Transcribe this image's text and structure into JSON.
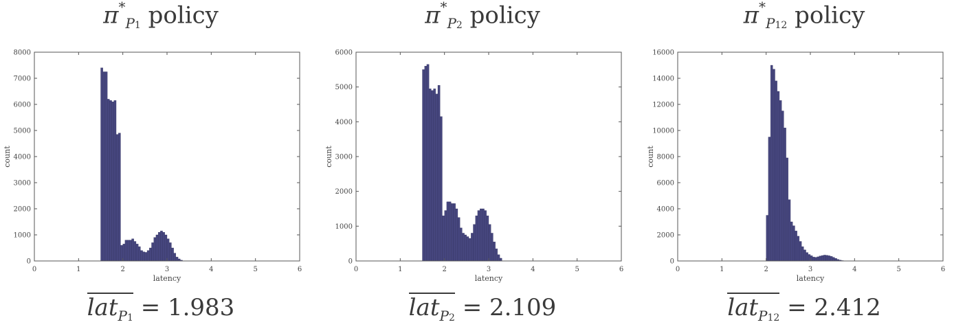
{
  "bar_color": "#46467e",
  "chart_data": [
    {
      "type": "bar",
      "title_prefix": "π",
      "title_star": "*",
      "title_sub": "P",
      "title_sub_num": "1",
      "title_suffix": "policy",
      "formula_text": "lat",
      "formula_sub": "P",
      "formula_sub_num": "1",
      "formula_value": "= 1.983",
      "xlabel": "latency",
      "ylabel": "count",
      "xlim": [
        0,
        6
      ],
      "ylim": [
        0,
        8000
      ],
      "xticks": [
        0,
        1,
        2,
        3,
        4,
        5,
        6
      ],
      "yticks": [
        0,
        1000,
        2000,
        3000,
        4000,
        5000,
        6000,
        7000,
        8000
      ],
      "bin_start": 1.5,
      "bin_width": 0.05,
      "values": [
        7400,
        7250,
        7250,
        6200,
        6150,
        6100,
        6150,
        4850,
        4900,
        600,
        650,
        800,
        800,
        800,
        850,
        750,
        650,
        550,
        400,
        350,
        330,
        400,
        500,
        700,
        900,
        1000,
        1100,
        1150,
        1100,
        1000,
        850,
        700,
        500,
        300,
        150,
        80,
        30
      ]
    },
    {
      "type": "bar",
      "title_prefix": "π",
      "title_star": "*",
      "title_sub": "P",
      "title_sub_num": "2",
      "title_suffix": "policy",
      "formula_text": "lat",
      "formula_sub": "P",
      "formula_sub_num": "2",
      "formula_value": "= 2.109",
      "xlabel": "latency",
      "ylabel": "count",
      "xlim": [
        0,
        6
      ],
      "ylim": [
        0,
        6000
      ],
      "xticks": [
        0,
        1,
        2,
        3,
        4,
        5,
        6
      ],
      "yticks": [
        0,
        1000,
        2000,
        3000,
        4000,
        5000,
        6000
      ],
      "bin_start": 1.5,
      "bin_width": 0.05,
      "values": [
        5500,
        5600,
        5650,
        4950,
        4900,
        4950,
        4800,
        5050,
        4150,
        1300,
        1450,
        1700,
        1700,
        1650,
        1650,
        1500,
        1250,
        950,
        800,
        750,
        700,
        650,
        800,
        1050,
        1300,
        1450,
        1500,
        1500,
        1450,
        1300,
        1050,
        800,
        550,
        350,
        180,
        80
      ]
    },
    {
      "type": "bar",
      "title_prefix": "π",
      "title_star": "*",
      "title_sub": "P",
      "title_sub_num": "12",
      "title_suffix": "policy",
      "formula_text": "lat",
      "formula_sub": "P",
      "formula_sub_num": "12",
      "formula_value": "= 2.412",
      "xlabel": "latency",
      "ylabel": "count",
      "xlim": [
        0,
        6
      ],
      "ylim": [
        0,
        16000
      ],
      "xticks": [
        0,
        1,
        2,
        3,
        4,
        5,
        6
      ],
      "yticks": [
        0,
        2000,
        4000,
        6000,
        8000,
        10000,
        12000,
        14000,
        16000
      ],
      "bin_start": 2.0,
      "bin_width": 0.05,
      "values": [
        3500,
        9500,
        15000,
        14700,
        13800,
        13000,
        12300,
        11500,
        10200,
        7900,
        4700,
        3000,
        2700,
        2300,
        1900,
        1500,
        1100,
        850,
        650,
        500,
        400,
        300,
        280,
        320,
        380,
        420,
        450,
        430,
        400,
        350,
        280,
        200,
        120,
        70,
        30
      ]
    }
  ]
}
